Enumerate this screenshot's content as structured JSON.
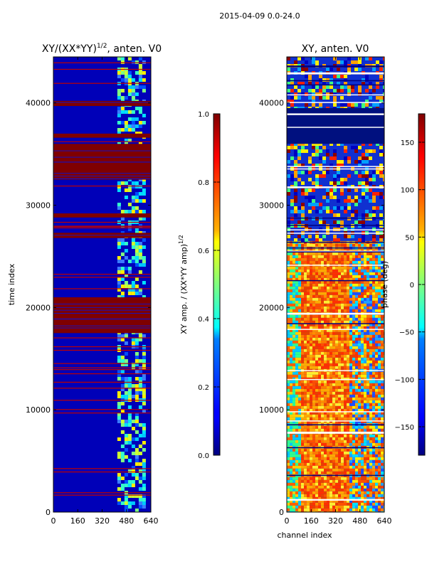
{
  "suptitle": "2015-04-09 0.0-24.0",
  "chart_data": [
    {
      "type": "heatmap",
      "title_main": "XY/(XX*YY)",
      "title_exp": "1/2",
      "title_tail": ", anten. V0",
      "xlabel": "",
      "ylabel": "time index",
      "xlim": [
        0,
        640
      ],
      "ylim": [
        0,
        44500
      ],
      "xticks": [
        0,
        160,
        320,
        480,
        640
      ],
      "yticks": [
        0,
        10000,
        20000,
        30000,
        40000
      ],
      "colorbar": {
        "range": [
          0.0,
          1.0
        ],
        "ticks": [
          "0.0",
          "0.2",
          "0.4",
          "0.6",
          "0.8",
          "1.0"
        ],
        "label_main": "XY amp. / (XX*YY amp)",
        "label_exp": "1/2",
        "colormap": "jet"
      },
      "saturated_time_bands": [
        [
          17500,
          21000
        ],
        [
          26800,
          27300
        ],
        [
          28800,
          29200
        ],
        [
          32500,
          36000
        ],
        [
          36600,
          37000
        ],
        [
          39700,
          40200
        ]
      ],
      "bright_channel_range": [
        420,
        600
      ]
    },
    {
      "type": "heatmap",
      "title": "XY, anten. V0",
      "xlabel": "channel index",
      "ylabel": "",
      "xlim": [
        0,
        640
      ],
      "ylim": [
        0,
        44500
      ],
      "xticks": [
        0,
        160,
        320,
        480,
        640
      ],
      "yticks": [
        0,
        10000,
        20000,
        30000,
        40000
      ],
      "colorbar": {
        "range": [
          -180,
          180
        ],
        "ticks": [
          "−150",
          "−100",
          "−50",
          "0",
          "50",
          "100",
          "150"
        ],
        "label": "phase (deg)",
        "colormap": "jet"
      },
      "dark_time_bands": [
        [
          36000,
          39500
        ]
      ],
      "hot_time_range": [
        0,
        26500
      ]
    }
  ]
}
